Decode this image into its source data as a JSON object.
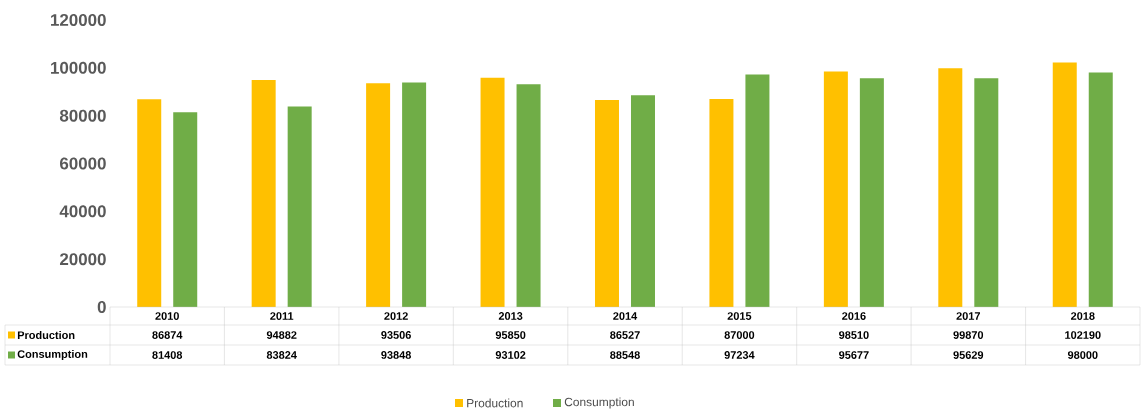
{
  "chart_data": {
    "type": "bar",
    "categories": [
      "2010",
      "2011",
      "2012",
      "2013",
      "2014",
      "2015",
      "2016",
      "2017",
      "2018"
    ],
    "series": [
      {
        "name": "Production",
        "color": "#ffc000",
        "values": [
          86874,
          94882,
          93506,
          95850,
          86527,
          87000,
          98510,
          99870,
          102190
        ]
      },
      {
        "name": "Consumption",
        "color": "#70ad47",
        "values": [
          81408,
          83824,
          93848,
          93102,
          88548,
          97234,
          95677,
          95629,
          98000
        ]
      }
    ],
    "ylim": [
      0,
      120000
    ],
    "yticks": [
      0,
      20000,
      40000,
      60000,
      80000,
      100000,
      120000
    ],
    "data_labels": true,
    "legend": "bottom"
  }
}
